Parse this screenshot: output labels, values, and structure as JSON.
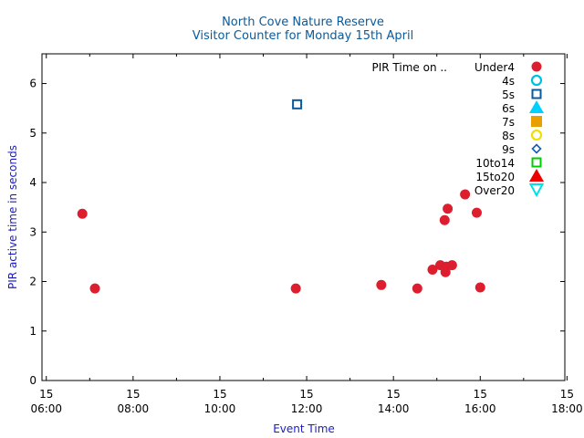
{
  "chart_data": {
    "type": "scatter",
    "title": "North Cove Nature Reserve",
    "subtitle": "Visitor Counter for Monday 15th April",
    "xlabel": "Event Time",
    "ylabel": "PIR active time in seconds",
    "xlim": [
      5.9,
      17.95
    ],
    "ylim": [
      0,
      6.6
    ],
    "grid": false,
    "legend_position": "top-right",
    "legend_title": "PIR Time on ..",
    "x_ticks": [
      {
        "x": 6,
        "day": "15",
        "time": "06:00"
      },
      {
        "x": 8,
        "day": "15",
        "time": "08:00"
      },
      {
        "x": 10,
        "day": "15",
        "time": "10:00"
      },
      {
        "x": 12,
        "day": "15",
        "time": "12:00"
      },
      {
        "x": 14,
        "day": "15",
        "time": "14:00"
      },
      {
        "x": 16,
        "day": "15",
        "time": "16:00"
      },
      {
        "x": 18,
        "day": "15",
        "time": "18:00"
      }
    ],
    "y_ticks": [
      0,
      1,
      2,
      3,
      4,
      5,
      6
    ],
    "series": [
      {
        "name": "Under4",
        "color": "#dd1e2f",
        "marker": "circle-filled",
        "points": [
          {
            "x": 6.83,
            "y": 3.37
          },
          {
            "x": 7.12,
            "y": 1.86
          },
          {
            "x": 11.75,
            "y": 1.86
          },
          {
            "x": 13.72,
            "y": 1.93
          },
          {
            "x": 14.55,
            "y": 1.86
          },
          {
            "x": 14.9,
            "y": 2.24
          },
          {
            "x": 15.08,
            "y": 2.33
          },
          {
            "x": 15.18,
            "y": 3.24
          },
          {
            "x": 15.2,
            "y": 2.19
          },
          {
            "x": 15.22,
            "y": 2.3
          },
          {
            "x": 15.25,
            "y": 3.47
          },
          {
            "x": 15.35,
            "y": 2.33
          },
          {
            "x": 15.65,
            "y": 3.76
          },
          {
            "x": 15.92,
            "y": 3.39
          },
          {
            "x": 16.0,
            "y": 1.88
          }
        ]
      },
      {
        "name": "4s",
        "color": "#00c0e0",
        "marker": "circle-open",
        "points": []
      },
      {
        "name": "5s",
        "color": "#0a5a9c",
        "marker": "square-open",
        "points": [
          {
            "x": 11.78,
            "y": 5.58
          }
        ]
      },
      {
        "name": "6s",
        "color": "#00d0ff",
        "marker": "triangle-filled",
        "points": []
      },
      {
        "name": "7s",
        "color": "#e8a000",
        "marker": "square-filled",
        "points": []
      },
      {
        "name": "8s",
        "color": "#f0e000",
        "marker": "circle-open",
        "points": []
      },
      {
        "name": "9s",
        "color": "#1a5ab8",
        "marker": "diamond-open",
        "points": []
      },
      {
        "name": "10to14",
        "color": "#00cc00",
        "marker": "square-open",
        "points": []
      },
      {
        "name": "15to20",
        "color": "#ee0000",
        "marker": "triangle-filled",
        "points": []
      },
      {
        "name": "Over20",
        "color": "#00e0e8",
        "marker": "triangle-down-open",
        "points": []
      }
    ]
  }
}
